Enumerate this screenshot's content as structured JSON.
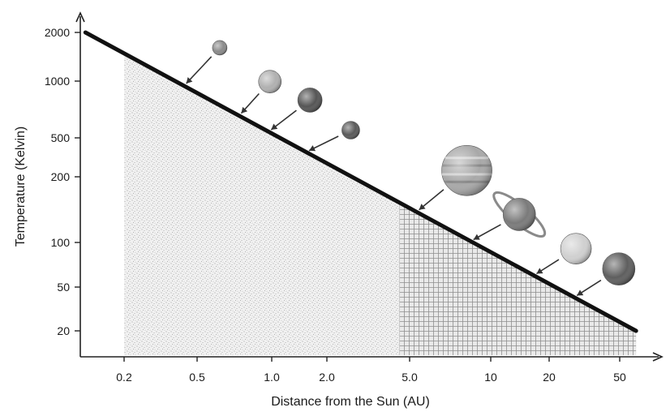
{
  "chart_data": {
    "type": "line",
    "title": "",
    "xlabel": "Distance from the Sun (AU)",
    "ylabel": "Temperature (Kelvin)",
    "x_scale": "log",
    "y_scale": "categorical",
    "x_ticks": [
      "0.2",
      "0.5",
      "1.0",
      "2.0",
      "5.0",
      "10",
      "20",
      "50"
    ],
    "y_ticks": [
      "2000",
      "1000",
      "500",
      "200",
      "100",
      "50",
      "20"
    ],
    "xlim": [
      0.12,
      70
    ],
    "series": [
      {
        "x": [
          0.13,
          60
        ],
        "y": [
          2000,
          20
        ]
      }
    ],
    "regions": [
      {
        "pattern": "stipple",
        "x_range": [
          0.2,
          60
        ]
      },
      {
        "pattern": "grid",
        "x_range": [
          4.3,
          60
        ]
      }
    ],
    "planets": [
      {
        "icon": "mercury-icon",
        "distance_au": 0.39,
        "color": "#8a8a8a"
      },
      {
        "icon": "venus-icon",
        "distance_au": 0.72,
        "color": "#b0b0b0"
      },
      {
        "icon": "earth-icon",
        "distance_au": 1.0,
        "color": "#555555"
      },
      {
        "icon": "mars-icon",
        "distance_au": 1.52,
        "color": "#5a5a5a"
      },
      {
        "icon": "jupiter-icon",
        "distance_au": 5.2,
        "color": "#a8a8a8"
      },
      {
        "icon": "saturn-icon",
        "distance_au": 9.5,
        "color": "#7a7a7a"
      },
      {
        "icon": "uranus-icon",
        "distance_au": 19.2,
        "color": "#d0d0d0"
      },
      {
        "icon": "neptune-icon",
        "distance_au": 30.1,
        "color": "#5e5e5e"
      }
    ],
    "grid": false,
    "legend": "none"
  }
}
